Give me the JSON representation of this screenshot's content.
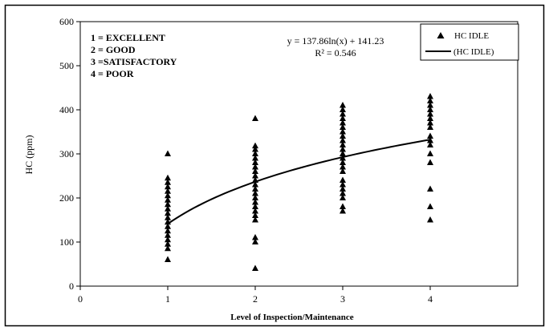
{
  "chart_data": {
    "type": "scatter",
    "title": "",
    "xlabel": "Level of Inspection/Maintenance",
    "ylabel": "HC (ppm)",
    "xlim": [
      0,
      5
    ],
    "ylim": [
      0,
      600
    ],
    "x_ticks": [
      0,
      1,
      2,
      3,
      4
    ],
    "y_ticks": [
      0,
      100,
      200,
      300,
      400,
      500,
      600
    ],
    "grid": false,
    "legend_placement": "top-right",
    "annotations": [
      "1 = EXCELLENT",
      "2 = GOOD",
      "3 =SATISFACTORY",
      "4 = POOR"
    ],
    "equation": "y = 137.86ln(x) + 141.23",
    "r_squared": "R² = 0.546",
    "series": [
      {
        "name": "HC IDLE",
        "kind": "points",
        "marker": "triangle",
        "color": "#000000",
        "points": [
          [
            1,
            60
          ],
          [
            1,
            85
          ],
          [
            1,
            95
          ],
          [
            1,
            105
          ],
          [
            1,
            115
          ],
          [
            1,
            125
          ],
          [
            1,
            135
          ],
          [
            1,
            145
          ],
          [
            1,
            155
          ],
          [
            1,
            165
          ],
          [
            1,
            175
          ],
          [
            1,
            185
          ],
          [
            1,
            195
          ],
          [
            1,
            205
          ],
          [
            1,
            215
          ],
          [
            1,
            225
          ],
          [
            1,
            235
          ],
          [
            1,
            245
          ],
          [
            1,
            300
          ],
          [
            2,
            40
          ],
          [
            2,
            100
          ],
          [
            2,
            110
          ],
          [
            2,
            150
          ],
          [
            2,
            160
          ],
          [
            2,
            170
          ],
          [
            2,
            180
          ],
          [
            2,
            190
          ],
          [
            2,
            200
          ],
          [
            2,
            210
          ],
          [
            2,
            220
          ],
          [
            2,
            230
          ],
          [
            2,
            240
          ],
          [
            2,
            250
          ],
          [
            2,
            260
          ],
          [
            2,
            270
          ],
          [
            2,
            280
          ],
          [
            2,
            290
          ],
          [
            2,
            300
          ],
          [
            2,
            310
          ],
          [
            2,
            318
          ],
          [
            2,
            380
          ],
          [
            3,
            170
          ],
          [
            3,
            180
          ],
          [
            3,
            200
          ],
          [
            3,
            210
          ],
          [
            3,
            220
          ],
          [
            3,
            230
          ],
          [
            3,
            240
          ],
          [
            3,
            260
          ],
          [
            3,
            270
          ],
          [
            3,
            280
          ],
          [
            3,
            290
          ],
          [
            3,
            300
          ],
          [
            3,
            310
          ],
          [
            3,
            320
          ],
          [
            3,
            330
          ],
          [
            3,
            340
          ],
          [
            3,
            350
          ],
          [
            3,
            360
          ],
          [
            3,
            370
          ],
          [
            3,
            380
          ],
          [
            3,
            390
          ],
          [
            3,
            400
          ],
          [
            3,
            410
          ],
          [
            4,
            150
          ],
          [
            4,
            180
          ],
          [
            4,
            220
          ],
          [
            4,
            280
          ],
          [
            4,
            300
          ],
          [
            4,
            320
          ],
          [
            4,
            330
          ],
          [
            4,
            340
          ],
          [
            4,
            360
          ],
          [
            4,
            370
          ],
          [
            4,
            380
          ],
          [
            4,
            390
          ],
          [
            4,
            400
          ],
          [
            4,
            410
          ],
          [
            4,
            420
          ],
          [
            4,
            430
          ]
        ]
      },
      {
        "name": "(HC IDLE)",
        "kind": "trendline",
        "fit": "logarithmic",
        "coefficients": {
          "a": 137.86,
          "b": 141.23
        },
        "x_range": [
          1,
          4
        ],
        "color": "#000000"
      }
    ]
  }
}
